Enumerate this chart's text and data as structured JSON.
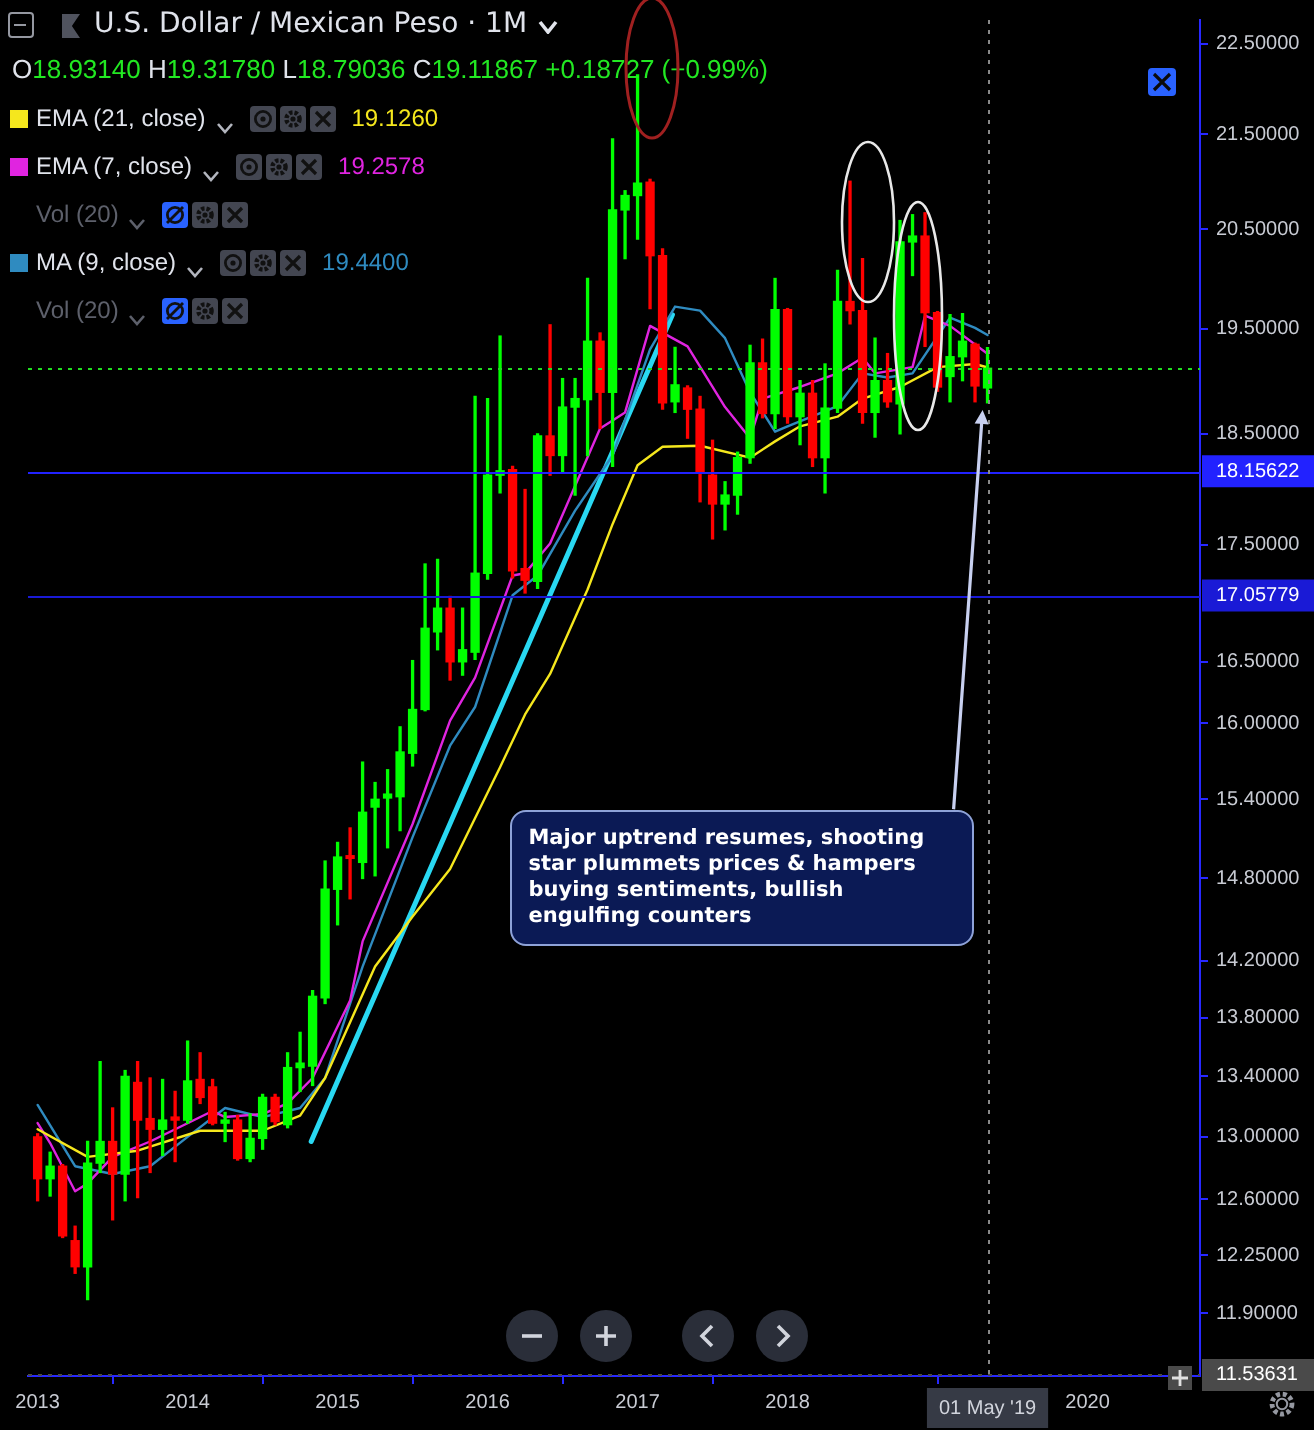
{
  "chart_data": {
    "type": "candlestick",
    "title": "U.S. Dollar / Mexican Peso · 1M",
    "x": [
      "2013-01",
      "2013-02",
      "2013-03",
      "2013-04",
      "2013-05",
      "2013-06",
      "2013-07",
      "2013-08",
      "2013-09",
      "2013-10",
      "2013-11",
      "2013-12",
      "2014-01",
      "2014-02",
      "2014-03",
      "2014-04",
      "2014-05",
      "2014-06",
      "2014-07",
      "2014-08",
      "2014-09",
      "2014-10",
      "2014-11",
      "2014-12",
      "2015-01",
      "2015-02",
      "2015-03",
      "2015-04",
      "2015-05",
      "2015-06",
      "2015-07",
      "2015-08",
      "2015-09",
      "2015-10",
      "2015-11",
      "2015-12",
      "2016-01",
      "2016-02",
      "2016-03",
      "2016-04",
      "2016-05",
      "2016-06",
      "2016-07",
      "2016-08",
      "2016-09",
      "2016-10",
      "2016-11",
      "2016-12",
      "2017-01",
      "2017-02",
      "2017-03",
      "2017-04",
      "2017-05",
      "2017-06",
      "2017-07",
      "2017-08",
      "2017-09",
      "2017-10",
      "2017-11",
      "2017-12",
      "2018-01",
      "2018-02",
      "2018-03",
      "2018-04",
      "2018-05",
      "2018-06",
      "2018-07",
      "2018-08",
      "2018-09",
      "2018-10",
      "2018-11",
      "2018-12",
      "2019-01",
      "2019-02",
      "2019-03",
      "2019-04",
      "2019-05"
    ],
    "ohlc": [
      [
        13.0,
        13.02,
        12.59,
        12.73
      ],
      [
        12.73,
        12.9,
        12.62,
        12.81
      ],
      [
        12.81,
        12.82,
        12.36,
        12.37
      ],
      [
        12.34,
        12.43,
        12.14,
        12.18
      ],
      [
        12.18,
        12.97,
        11.98,
        12.83
      ],
      [
        12.83,
        13.5,
        12.77,
        12.97
      ],
      [
        12.97,
        13.19,
        12.47,
        12.76
      ],
      [
        12.76,
        13.44,
        12.59,
        13.4
      ],
      [
        13.36,
        13.5,
        12.61,
        13.11
      ],
      [
        13.12,
        13.39,
        12.77,
        13.05
      ],
      [
        13.05,
        13.38,
        12.88,
        13.11
      ],
      [
        13.13,
        13.3,
        12.84,
        13.11
      ],
      [
        13.11,
        13.64,
        13.09,
        13.37
      ],
      [
        13.38,
        13.56,
        13.22,
        13.26
      ],
      [
        13.33,
        13.38,
        13.08,
        13.09
      ],
      [
        13.09,
        13.16,
        12.97,
        13.11
      ],
      [
        13.11,
        13.14,
        12.85,
        12.86
      ],
      [
        12.86,
        13.15,
        12.84,
        12.99
      ],
      [
        12.99,
        13.28,
        12.92,
        13.26
      ],
      [
        13.26,
        13.28,
        13.08,
        13.1
      ],
      [
        13.08,
        13.56,
        13.06,
        13.46
      ],
      [
        13.46,
        13.7,
        13.3,
        13.49
      ],
      [
        13.47,
        13.99,
        13.34,
        13.95
      ],
      [
        13.94,
        14.93,
        13.9,
        14.72
      ],
      [
        14.72,
        15.07,
        14.46,
        14.96
      ],
      [
        14.97,
        15.18,
        14.65,
        14.95
      ],
      [
        14.92,
        15.69,
        14.8,
        15.3
      ],
      [
        15.34,
        15.53,
        14.82,
        15.4
      ],
      [
        15.41,
        15.63,
        15.03,
        15.44
      ],
      [
        15.42,
        15.97,
        15.16,
        15.77
      ],
      [
        15.76,
        16.51,
        15.66,
        16.11
      ],
      [
        16.11,
        17.33,
        16.1,
        16.78
      ],
      [
        16.75,
        17.37,
        16.6,
        16.95
      ],
      [
        16.95,
        17.05,
        16.35,
        16.5
      ],
      [
        16.5,
        16.95,
        16.39,
        16.6
      ],
      [
        16.58,
        18.85,
        16.52,
        17.25
      ],
      [
        17.25,
        18.83,
        17.2,
        18.12
      ],
      [
        18.12,
        19.43,
        17.96,
        18.16
      ],
      [
        18.17,
        18.2,
        17.21,
        17.27
      ],
      [
        17.29,
        17.99,
        17.08,
        17.19
      ],
      [
        17.18,
        18.5,
        17.12,
        18.48
      ],
      [
        18.48,
        19.54,
        18.12,
        18.3
      ],
      [
        18.3,
        19.02,
        18.15,
        18.75
      ],
      [
        18.75,
        19.02,
        17.94,
        18.83
      ],
      [
        18.82,
        20.0,
        18.3,
        19.38
      ],
      [
        19.38,
        19.46,
        18.55,
        18.89
      ],
      [
        18.89,
        21.45,
        18.2,
        20.7
      ],
      [
        20.7,
        20.9,
        20.2,
        20.85
      ],
      [
        20.85,
        22.15,
        20.4,
        20.98
      ],
      [
        20.99,
        21.02,
        19.7,
        20.23
      ],
      [
        20.23,
        20.3,
        18.73,
        18.79
      ],
      [
        18.8,
        19.32,
        18.7,
        18.96
      ],
      [
        18.93,
        18.95,
        18.46,
        18.73
      ],
      [
        18.73,
        18.85,
        17.88,
        18.14
      ],
      [
        18.12,
        18.44,
        17.55,
        17.86
      ],
      [
        17.86,
        18.06,
        17.63,
        17.94
      ],
      [
        17.94,
        18.33,
        17.77,
        18.28
      ],
      [
        18.28,
        19.34,
        18.23,
        19.17
      ],
      [
        19.17,
        19.4,
        18.65,
        18.69
      ],
      [
        18.69,
        20.0,
        18.55,
        19.69
      ],
      [
        19.69,
        19.7,
        18.6,
        18.66
      ],
      [
        18.66,
        19.0,
        18.4,
        18.88
      ],
      [
        18.88,
        19.0,
        18.2,
        18.28
      ],
      [
        18.28,
        19.16,
        17.96,
        18.74
      ],
      [
        18.74,
        20.08,
        18.7,
        19.77
      ],
      [
        19.77,
        21.0,
        19.55,
        19.68
      ],
      [
        19.68,
        20.2,
        18.6,
        18.7
      ],
      [
        18.7,
        19.41,
        18.47,
        19.0
      ],
      [
        19.0,
        19.26,
        18.75,
        18.8
      ],
      [
        18.78,
        20.59,
        18.5,
        20.37
      ],
      [
        20.37,
        20.65,
        20.03,
        20.43
      ],
      [
        20.43,
        20.67,
        19.33,
        19.66
      ],
      [
        19.66,
        19.67,
        18.9,
        18.94
      ],
      [
        19.04,
        19.64,
        18.8,
        19.23
      ],
      [
        19.23,
        19.65,
        19.0,
        19.38
      ],
      [
        19.35,
        19.36,
        18.8,
        18.95
      ],
      [
        18.9314,
        19.3178,
        18.79036,
        19.11867
      ]
    ],
    "colors": [
      "#ff0000",
      "#00ff00",
      "#ff0000",
      "#ff0000",
      "#00ff00",
      "#00ff00",
      "#ff0000",
      "#00ff00",
      "#ff0000",
      "#ff0000",
      "#00ff00",
      "#ff0000",
      "#00ff00",
      "#ff0000",
      "#ff0000",
      "#00ff00",
      "#ff0000",
      "#00ff00",
      "#00ff00",
      "#ff0000",
      "#00ff00",
      "#00ff00",
      "#00ff00",
      "#00ff00",
      "#00ff00",
      "#ff0000",
      "#00ff00",
      "#00ff00",
      "#00ff00",
      "#00ff00",
      "#00ff00",
      "#00ff00",
      "#00ff00",
      "#ff0000",
      "#00ff00",
      "#00ff00",
      "#00ff00",
      "#00ff00",
      "#ff0000",
      "#ff0000",
      "#00ff00",
      "#ff0000",
      "#00ff00",
      "#00ff00",
      "#00ff00",
      "#ff0000",
      "#00ff00",
      "#00ff00",
      "#00ff00",
      "#ff0000",
      "#ff0000",
      "#00ff00",
      "#ff0000",
      "#ff0000",
      "#ff0000",
      "#00ff00",
      "#00ff00",
      "#00ff00",
      "#ff0000",
      "#00ff00",
      "#ff0000",
      "#00ff00",
      "#ff0000",
      "#00ff00",
      "#00ff00",
      "#ff0000",
      "#ff0000",
      "#00ff00",
      "#ff0000",
      "#00ff00",
      "#00ff00",
      "#ff0000",
      "#ff0000",
      "#00ff00",
      "#00ff00",
      "#ff0000",
      "#00ff00"
    ],
    "series": [
      {
        "name": "EMA (21, close)",
        "type": "line",
        "color": "#f5e71d",
        "x": [
          "2013-01",
          "2013-05",
          "2013-09",
          "2014-02",
          "2014-07",
          "2014-10",
          "2014-12",
          "2015-04",
          "2015-07",
          "2015-10",
          "2016-02",
          "2016-04",
          "2016-06",
          "2016-09",
          "2016-11",
          "2017-01",
          "2017-03",
          "2017-06",
          "2017-10",
          "2017-12",
          "2018-02",
          "2018-05",
          "2018-07",
          "2018-10",
          "2019-01",
          "2019-04",
          "2019-05"
        ],
        "values": [
          13.05,
          12.87,
          12.91,
          13.04,
          13.04,
          13.14,
          13.39,
          14.16,
          14.52,
          14.87,
          15.65,
          16.07,
          16.4,
          17.11,
          17.68,
          18.21,
          18.38,
          18.39,
          18.28,
          18.43,
          18.57,
          18.66,
          18.83,
          18.94,
          19.13,
          19.16,
          19.126
        ]
      },
      {
        "name": "EMA (7, close)",
        "type": "line",
        "color": "#e024e0",
        "x": [
          "2013-01",
          "2013-02",
          "2013-04",
          "2013-05",
          "2013-07",
          "2013-10",
          "2014-03",
          "2014-04",
          "2014-07",
          "2014-09",
          "2014-11",
          "2015-02",
          "2015-03",
          "2015-07",
          "2015-10",
          "2015-12",
          "2016-03",
          "2016-04",
          "2016-06",
          "2016-10",
          "2016-12",
          "2017-02",
          "2017-05",
          "2017-08",
          "2017-10",
          "2017-11",
          "2018-02",
          "2018-05",
          "2018-07",
          "2018-08",
          "2018-11",
          "2018-12",
          "2019-02",
          "2019-05"
        ],
        "values": [
          13.09,
          12.96,
          12.65,
          12.7,
          12.87,
          12.97,
          13.17,
          13.13,
          13.15,
          13.22,
          13.39,
          13.92,
          14.34,
          15.21,
          16.02,
          16.37,
          17.23,
          17.25,
          17.51,
          18.55,
          18.7,
          19.53,
          19.33,
          18.75,
          18.46,
          18.83,
          18.94,
          19.07,
          19.22,
          19.07,
          19.13,
          19.63,
          19.53,
          19.2578
        ]
      },
      {
        "name": "MA (9, close)",
        "type": "line",
        "color": "#2f8bc0",
        "x": [
          "2013-01",
          "2013-04",
          "2013-07",
          "2013-10",
          "2014-01",
          "2014-04",
          "2014-07",
          "2014-10",
          "2014-12",
          "2015-03",
          "2015-07",
          "2015-10",
          "2015-12",
          "2016-03",
          "2016-05",
          "2016-08",
          "2016-11",
          "2017-02",
          "2017-04",
          "2017-06",
          "2017-08",
          "2017-10",
          "2017-12",
          "2018-01",
          "2018-05",
          "2018-07",
          "2018-09",
          "2018-11",
          "2019-02",
          "2019-04",
          "2019-05"
        ],
        "values": [
          13.21,
          12.81,
          12.76,
          12.81,
          13.0,
          13.19,
          13.13,
          13.19,
          13.39,
          14.16,
          15.11,
          15.82,
          16.13,
          17.06,
          17.23,
          17.8,
          18.3,
          19.3,
          19.72,
          19.68,
          19.41,
          18.89,
          18.52,
          18.57,
          18.76,
          19.07,
          19.03,
          19.07,
          19.61,
          19.51,
          19.44
        ]
      },
      {
        "type": "line",
        "color": "#29d8f2",
        "x": [
          "2014-10-28",
          "2017-03-25"
        ],
        "values": [
          12.97,
          19.64
        ]
      }
    ],
    "marker": "none",
    "log": true,
    "grid": false,
    "legend": "top left",
    "xlim": [
      "2012-12-08",
      "2020-10-01"
    ],
    "xticks": [
      {
        "value": "2013",
        "label": "2013"
      },
      {
        "value": "2014",
        "label": "2014"
      },
      {
        "value": "2015",
        "label": "2015"
      },
      {
        "value": "2016",
        "label": "2016"
      },
      {
        "value": "2017",
        "label": "2017"
      },
      {
        "value": "2018",
        "label": "2018"
      },
      {
        "value": "2020",
        "label": "2020"
      }
    ],
    "ylim": [
      11.53,
      22.77
    ],
    "yticks": [
      {
        "value": 11.9,
        "label": "11.90000"
      },
      {
        "value": 12.25,
        "label": "12.25000"
      },
      {
        "value": 12.6,
        "label": "12.60000"
      },
      {
        "value": 13,
        "label": "13.00000"
      },
      {
        "value": 13.4,
        "label": "13.40000"
      },
      {
        "value": 13.8,
        "label": "13.80000"
      },
      {
        "value": 14.2,
        "label": "14.20000"
      },
      {
        "value": 14.8,
        "label": "14.80000"
      },
      {
        "value": 15.4,
        "label": "15.40000"
      },
      {
        "value": 16,
        "label": "16.00000"
      },
      {
        "value": 16.5,
        "label": "16.50000"
      },
      {
        "value": 17.5,
        "label": "17.50000"
      },
      {
        "value": 18.5,
        "label": "18.50000"
      },
      {
        "value": 19.5,
        "label": "19.50000"
      },
      {
        "value": 20.5,
        "label": "20.50000"
      },
      {
        "value": 21.5,
        "label": "21.50000"
      },
      {
        "value": 22.5,
        "label": "22.50000"
      }
    ],
    "ref_lines": [
      {
        "axis": "y",
        "value": 18.15622,
        "label": "18.15622",
        "color": "#2222ff",
        "line_style": "solid"
      },
      {
        "axis": "y",
        "value": 17.05779,
        "label": "17.05779",
        "color": "#1a1ad6",
        "line_style": "solid"
      },
      {
        "axis": "y",
        "value": 19.11867,
        "color": "#22dd22",
        "line_style": "dotted"
      },
      {
        "axis": "y",
        "value": 11.53631,
        "label": "11.53631",
        "color": "#4a4a4a",
        "line_style": "dotted"
      },
      {
        "axis": "x",
        "value": "2019-05",
        "label": "01 May '19",
        "color": "#8a8a8a",
        "line_style": "dotted"
      }
    ],
    "annotations": [
      "O18.93140 H19.31780 L18.79036 C19.11867",
      "+0.18727 (+0.99%)",
      "Vol (20)",
      "Vol (20)",
      "Major uptrend resumes, shooting star plummets prices & hampers buying sentiments, bullish engulfing counters",
      "19.1260",
      "19.2578",
      "19.4400"
    ]
  }
}
